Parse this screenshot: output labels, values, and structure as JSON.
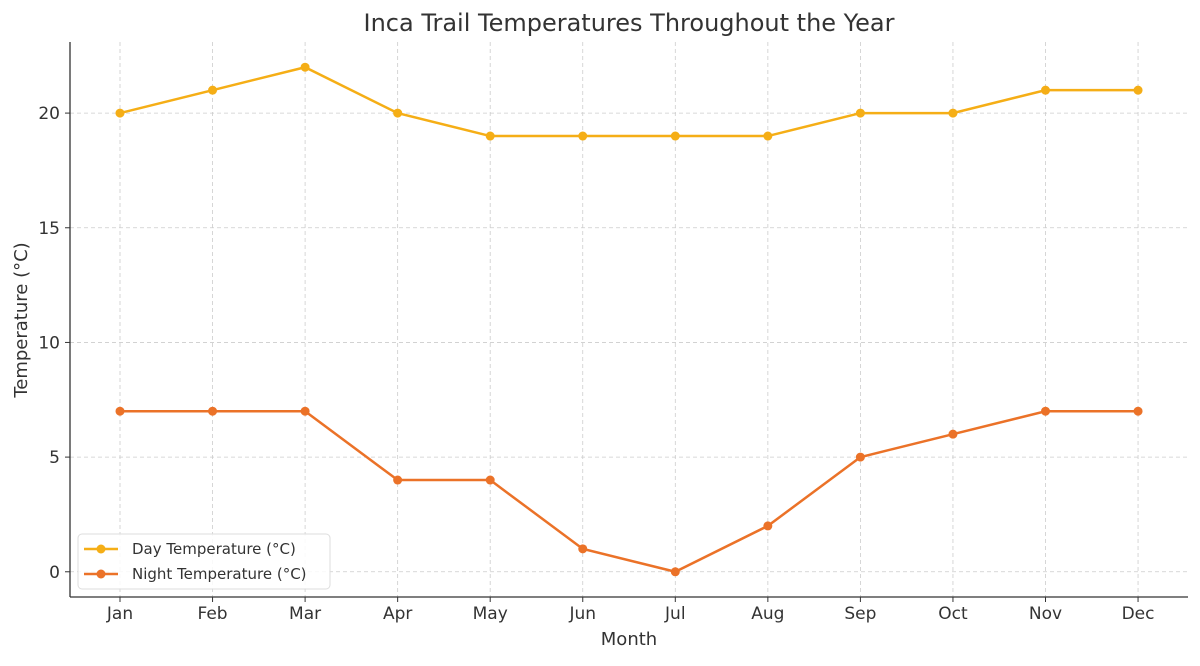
{
  "chart_data": {
    "type": "line",
    "title": "Inca Trail Temperatures Throughout the Year",
    "xlabel": "Month",
    "ylabel": "Temperature (°C)",
    "categories": [
      "Jan",
      "Feb",
      "Mar",
      "Apr",
      "May",
      "Jun",
      "Jul",
      "Aug",
      "Sep",
      "Oct",
      "Nov",
      "Dec"
    ],
    "yticks": [
      0,
      5,
      10,
      15,
      20
    ],
    "ylim": [
      -1.1,
      23.1
    ],
    "grid": true,
    "legend_position": "lower-left",
    "series": [
      {
        "name": "Day Temperature (°C)",
        "color": "#F5AE16",
        "values": [
          20,
          21,
          22,
          20,
          19,
          19,
          19,
          19,
          20,
          20,
          21,
          21
        ]
      },
      {
        "name": "Night Temperature (°C)",
        "color": "#EB7228",
        "values": [
          7,
          7,
          7,
          4,
          4,
          1,
          0,
          2,
          5,
          6,
          7,
          7
        ]
      }
    ]
  }
}
